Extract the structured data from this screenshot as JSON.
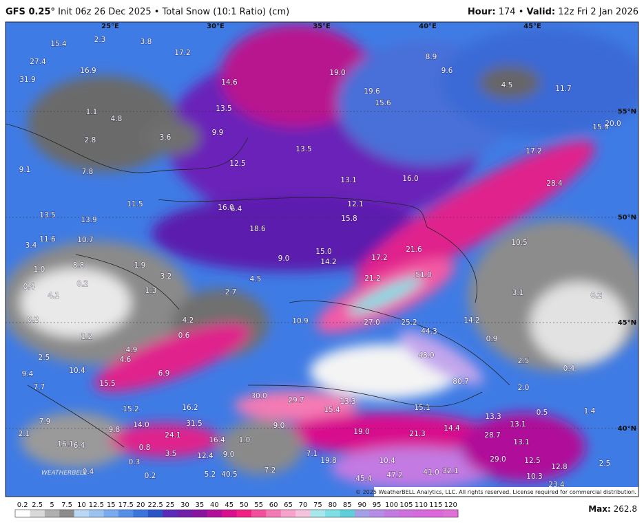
{
  "header": {
    "model": "GFS 0.25°",
    "run_info": "Init 06z 26 Dec 2025 • Total Snow (10:1 Ratio) (cm)",
    "hour_label": "Hour:",
    "hour": "174",
    "separator": "•",
    "valid_label": "Valid:",
    "valid": "12z Fri 2 Jan 2026"
  },
  "map": {
    "lon_labels": [
      "25°E",
      "30°E",
      "35°E",
      "40°E",
      "45°E"
    ],
    "lat_labels": [
      "55°N",
      "50°N",
      "45°N",
      "40°N"
    ],
    "point_totals": [
      "15.4",
      "2.3",
      "3.8",
      "17.2",
      "27.4",
      "16.9",
      "31.9",
      "14.6",
      "19.0",
      "8.9",
      "9.6",
      "4.5",
      "11.7",
      "19.6",
      "15.6",
      "13.5",
      "1.1",
      "4.8",
      "9.9",
      "3.6",
      "2.8",
      "15.9",
      "20.0",
      "13.5",
      "17.2",
      "12.5",
      "9.1",
      "7.8",
      "13.1",
      "16.0",
      "28.4",
      "11.5",
      "12.1",
      "16.0",
      "6.4",
      "13.5",
      "13.9",
      "15.8",
      "18.6",
      "10.7",
      "11.6",
      "3.4",
      "10.5",
      "21.6",
      "15.0",
      "9.0",
      "17.2",
      "14.2",
      "1.0",
      "8.8",
      "1.9",
      "51.0",
      "3.2",
      "21.2",
      "0.4",
      "0.2",
      "4.5",
      "1.3",
      "2.7",
      "3.1",
      "0.2",
      "4.1",
      "0.2",
      "4.2",
      "10.9",
      "27.0",
      "25.2",
      "14.2",
      "44.3",
      "1.2",
      "0.6",
      "0.9",
      "2.5",
      "4.6",
      "4.9",
      "48.0",
      "2.5",
      "10.4",
      "9.4",
      "6.9",
      "0.4",
      "15.5",
      "7.7",
      "80.7",
      "2.0",
      "30.0",
      "29.7",
      "13.3",
      "15.4",
      "16.2",
      "15.2",
      "15.1",
      "0.5",
      "1.4",
      "7.9",
      "31.5",
      "14.0",
      "9.8",
      "9.0",
      "13.3",
      "13.1",
      "19.0",
      "21.3",
      "14.4",
      "28.7",
      "2.1",
      "24.1",
      "16.4",
      "1.0",
      "13.1",
      "16.1",
      "6.4",
      "0.8",
      "3.5",
      "12.4",
      "9.0",
      "7.1",
      "19.8",
      "10.4",
      "29.0",
      "12.5",
      "12.8",
      "2.5",
      "0.4",
      "0.3",
      "0.2",
      "5.2",
      "40.5",
      "7.2",
      "45.4",
      "47.2",
      "41.0",
      "32.1",
      "10.3",
      "23.4"
    ]
  },
  "logo": "WEATHERBELL",
  "colorbar": {
    "labels": [
      0.2,
      2.5,
      5,
      7.5,
      10,
      12.5,
      15,
      17.5,
      20,
      22.5,
      25,
      30,
      35,
      40,
      45,
      50,
      55,
      60,
      65,
      70,
      75,
      80,
      85,
      90,
      95,
      100,
      105,
      110,
      115,
      120
    ],
    "colors": [
      "#ffffff",
      "#d9d9d9",
      "#b0b0b0",
      "#8c8c8c",
      "#bcd7f5",
      "#9cc2f0",
      "#7aaaf0",
      "#5590e8",
      "#3a74dd",
      "#2a55c8",
      "#5b2ab8",
      "#6f1fa8",
      "#8a14a0",
      "#b0109a",
      "#d8108e",
      "#f02084",
      "#f24f9c",
      "#f57ab4",
      "#f7a3cb",
      "#f5c3db",
      "#a6e8ec",
      "#7fdfe6",
      "#5fd0da",
      "#a3a0e8",
      "#b58ce6",
      "#c37ae2",
      "#cf6fe0",
      "#d569dd",
      "#dc66da",
      "#e070d8"
    ]
  },
  "footer": {
    "copyright": "© 2025 WeatherBELL Analytics, LLC. All rights reserved. License required for commercial distribution.",
    "max_label": "Max:",
    "max_value": "262.8"
  }
}
